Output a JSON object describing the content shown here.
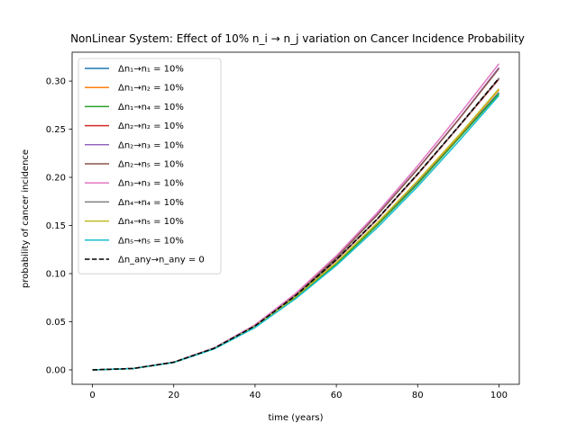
{
  "chart_data": {
    "type": "line",
    "title": "NonLinear System: Effect of 10% n_i → n_j variation on Cancer Incidence Probability",
    "xlabel": "time (years)",
    "ylabel": "probability of cancer incidence",
    "xlim": [
      -5,
      105
    ],
    "ylim": [
      -0.015,
      0.33
    ],
    "xticks": [
      0,
      20,
      40,
      60,
      80,
      100
    ],
    "yticks": [
      0.0,
      0.05,
      0.1,
      0.15,
      0.2,
      0.25,
      0.3
    ],
    "xtick_labels": [
      "0",
      "20",
      "40",
      "60",
      "80",
      "100"
    ],
    "ytick_labels": [
      "0.00",
      "0.05",
      "0.10",
      "0.15",
      "0.20",
      "0.25",
      "0.30"
    ],
    "grid": false,
    "legend_position": "upper-left",
    "x": [
      0,
      10,
      20,
      30,
      40,
      50,
      60,
      70,
      80,
      90,
      100
    ],
    "series": [
      {
        "name": "Δn₁→n₁ = 10%",
        "color": "#1f77b4",
        "dash": "solid",
        "values": [
          0,
          0.0014,
          0.0078,
          0.0222,
          0.045,
          0.076,
          0.111,
          0.151,
          0.195,
          0.241,
          0.288
        ]
      },
      {
        "name": "Δn₁→n₂ = 10%",
        "color": "#ff7f0e",
        "dash": "solid",
        "values": [
          0,
          0.0014,
          0.0078,
          0.0222,
          0.045,
          0.076,
          0.111,
          0.152,
          0.196,
          0.242,
          0.291
        ]
      },
      {
        "name": "Δn₁→n₄ = 10%",
        "color": "#2ca02c",
        "dash": "solid",
        "values": [
          0,
          0.0014,
          0.0078,
          0.022,
          0.0445,
          0.075,
          0.11,
          0.15,
          0.193,
          0.24,
          0.287
        ]
      },
      {
        "name": "Δn₂→n₂ = 10%",
        "color": "#d62728",
        "dash": "solid",
        "values": [
          0,
          0.0014,
          0.0079,
          0.0225,
          0.0455,
          0.077,
          0.114,
          0.156,
          0.203,
          0.252,
          0.302
        ]
      },
      {
        "name": "Δn₂→n₃ = 10%",
        "color": "#9467bd",
        "dash": "solid",
        "values": [
          0,
          0.0014,
          0.008,
          0.0228,
          0.0463,
          0.0785,
          0.117,
          0.161,
          0.209,
          0.26,
          0.314
        ]
      },
      {
        "name": "Δn₂→n₅ = 10%",
        "color": "#8c564b",
        "dash": "solid",
        "values": [
          0,
          0.0014,
          0.008,
          0.0227,
          0.0461,
          0.0782,
          0.1165,
          0.1605,
          0.2085,
          0.2595,
          0.313
        ]
      },
      {
        "name": "Δn₃→n₃ = 10%",
        "color": "#e377c2",
        "dash": "solid",
        "values": [
          0,
          0.0014,
          0.0081,
          0.023,
          0.0468,
          0.0795,
          0.1185,
          0.163,
          0.212,
          0.264,
          0.318
        ]
      },
      {
        "name": "Δn₄→n₄ = 10%",
        "color": "#7f7f7f",
        "dash": "solid",
        "values": [
          0,
          0.0014,
          0.0079,
          0.0225,
          0.0456,
          0.0772,
          0.1145,
          0.1565,
          0.2035,
          0.2525,
          0.303
        ]
      },
      {
        "name": "Δn₄→n₅ = 10%",
        "color": "#bcbd22",
        "dash": "solid",
        "values": [
          0,
          0.0014,
          0.0078,
          0.0222,
          0.0451,
          0.0762,
          0.1115,
          0.1525,
          0.1965,
          0.243,
          0.292
        ]
      },
      {
        "name": "Δn₅→n₅ = 10%",
        "color": "#17becf",
        "dash": "solid",
        "values": [
          0,
          0.0014,
          0.0077,
          0.0218,
          0.044,
          0.074,
          0.1085,
          0.1475,
          0.1905,
          0.237,
          0.285
        ]
      },
      {
        "name": "Δn_any→n_any = 0",
        "color": "#000000",
        "dash": "dashed",
        "values": [
          0,
          0.0014,
          0.0079,
          0.0225,
          0.0457,
          0.0772,
          0.1145,
          0.1565,
          0.2035,
          0.2525,
          0.303
        ]
      }
    ]
  }
}
